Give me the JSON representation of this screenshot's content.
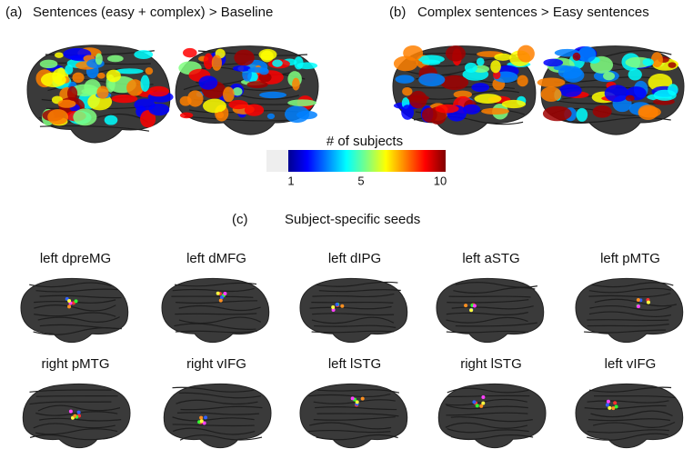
{
  "panels": [
    {
      "label": "(a)",
      "title": "Sentences (easy + complex) >  Baseline"
    },
    {
      "label": "(b)",
      "title": "Complex sentences  >  Easy sentences"
    }
  ],
  "colorbar": {
    "title": "# of subjects",
    "ticks": [
      1,
      5,
      10
    ]
  },
  "seeds": {
    "label": "(c)",
    "title": "Subject-specific seeds",
    "regions": [
      "left dpreMG",
      "left dMFG",
      "left dIPG",
      "left aSTG",
      "left pMTG",
      "right pMTG",
      "right vIFG",
      "left lSTG",
      "right lSTG",
      "left vIFG"
    ]
  }
}
